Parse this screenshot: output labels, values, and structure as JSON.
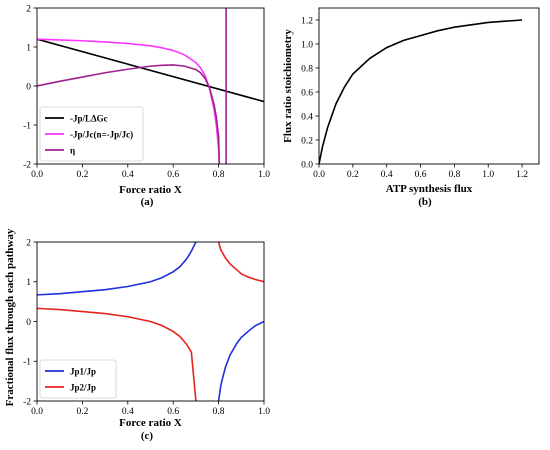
{
  "colors": {
    "black": "#000000",
    "magenta": "#ff33ff",
    "purple": "#a0208f",
    "blue": "#1f2fdc",
    "red": "#e4251c"
  },
  "chart_data": [
    {
      "id": "a",
      "type": "line",
      "panel_label": "(a)",
      "xlabel": "Force ratio X",
      "ylabel": "",
      "xlim": [
        0,
        1.0
      ],
      "ylim": [
        -2,
        2
      ],
      "xticks": [
        "0.0",
        "0.2",
        "0.4",
        "0.6",
        "0.8",
        "1.0"
      ],
      "yticks": [
        "-2",
        "-1",
        "0",
        "1",
        "2"
      ],
      "legend_position": "lower-left",
      "series": [
        {
          "name": "-Jp/LΔGc",
          "color": "#000000",
          "x": [
            0,
            1.0
          ],
          "y": [
            1.2,
            -0.4
          ]
        },
        {
          "name": "-Jp/Jc(n=-Jp/Jc)",
          "color": "#ff33ff",
          "x": [
            0,
            0.1,
            0.2,
            0.3,
            0.4,
            0.5,
            0.55,
            0.6,
            0.65,
            0.7,
            0.72,
            0.74,
            0.76,
            0.78,
            0.79,
            0.8,
            0.803
          ],
          "y": [
            1.2,
            1.18,
            1.16,
            1.13,
            1.09,
            1.03,
            0.98,
            0.91,
            0.8,
            0.6,
            0.47,
            0.27,
            -0.06,
            -0.6,
            -1.0,
            -1.6,
            -2.0
          ]
        },
        {
          "name": "η",
          "color": "#a0208f",
          "x": [
            0,
            0.1,
            0.2,
            0.3,
            0.4,
            0.5,
            0.55,
            0.6,
            0.65,
            0.7,
            0.72,
            0.74,
            0.76,
            0.78,
            0.79,
            0.8,
            0.803
          ],
          "y": [
            0,
            0.12,
            0.23,
            0.34,
            0.43,
            0.51,
            0.53,
            0.54,
            0.51,
            0.42,
            0.34,
            0.2,
            -0.05,
            -0.47,
            -0.8,
            -1.3,
            -2.0
          ]
        },
        {
          "name": "",
          "color": "#a0208f",
          "x": [
            0.833,
            0.833
          ],
          "y": [
            -2,
            2
          ]
        }
      ]
    },
    {
      "id": "b",
      "type": "line",
      "panel_label": "(b)",
      "xlabel": "ATP synthesis flux",
      "ylabel": "Flux ratio stoichiometry",
      "xlim": [
        0,
        1.3
      ],
      "ylim": [
        0,
        1.3
      ],
      "xticks": [
        "0.0",
        "0.2",
        "0.4",
        "0.6",
        "0.8",
        "1.0",
        "1.2"
      ],
      "yticks": [
        "0.0",
        "0.2",
        "0.4",
        "0.6",
        "0.8",
        "1.0",
        "1.2"
      ],
      "series": [
        {
          "name": "",
          "color": "#000000",
          "x": [
            0,
            0.02,
            0.05,
            0.1,
            0.15,
            0.2,
            0.3,
            0.4,
            0.5,
            0.6,
            0.7,
            0.8,
            0.9,
            1.0,
            1.1,
            1.2
          ],
          "y": [
            0,
            0.14,
            0.3,
            0.5,
            0.64,
            0.75,
            0.88,
            0.97,
            1.03,
            1.07,
            1.11,
            1.14,
            1.16,
            1.18,
            1.19,
            1.2
          ]
        }
      ]
    },
    {
      "id": "c",
      "type": "line",
      "panel_label": "(c)",
      "xlabel": "Force ratio X",
      "ylabel": "Fractional flux through each pathway",
      "xlim": [
        0,
        1.0
      ],
      "ylim": [
        -2,
        2
      ],
      "xticks": [
        "0.0",
        "0.2",
        "0.4",
        "0.6",
        "0.8",
        "1.0"
      ],
      "yticks": [
        "-2",
        "-1",
        "0",
        "1",
        "2"
      ],
      "legend_position": "lower-left",
      "series": [
        {
          "name": "Jp1/Jp",
          "color": "#1f2fdc",
          "x": [
            0,
            0.1,
            0.2,
            0.3,
            0.4,
            0.5,
            0.55,
            0.6,
            0.63,
            0.66,
            0.68,
            0.7
          ],
          "y": [
            0.67,
            0.7,
            0.75,
            0.8,
            0.88,
            1.0,
            1.1,
            1.25,
            1.38,
            1.58,
            1.77,
            2.0
          ],
          "x2": [
            0.8,
            0.81,
            0.83,
            0.85,
            0.88,
            0.9,
            0.93,
            0.96,
            1.0
          ],
          "y2": [
            -2.0,
            -1.6,
            -1.15,
            -0.85,
            -0.55,
            -0.4,
            -0.25,
            -0.11,
            0.0
          ]
        },
        {
          "name": "Jp2/Jp",
          "color": "#e4251c",
          "x": [
            0,
            0.1,
            0.2,
            0.3,
            0.4,
            0.5,
            0.55,
            0.6,
            0.63,
            0.66,
            0.68,
            0.7
          ],
          "y": [
            0.33,
            0.3,
            0.25,
            0.2,
            0.12,
            0.0,
            -0.1,
            -0.25,
            -0.38,
            -0.58,
            -0.77,
            -2.0
          ],
          "x2": [
            0.8,
            0.81,
            0.83,
            0.85,
            0.88,
            0.9,
            0.93,
            0.96,
            1.0
          ],
          "y2": [
            2.0,
            1.8,
            1.6,
            1.45,
            1.3,
            1.2,
            1.12,
            1.06,
            1.0
          ]
        }
      ]
    }
  ]
}
